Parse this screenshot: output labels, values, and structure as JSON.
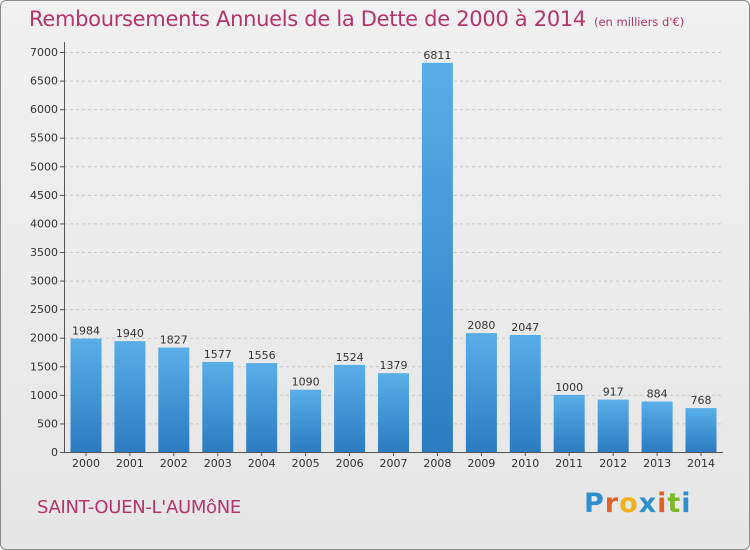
{
  "header": {
    "title": "Remboursements Annuels de la Dette de 2000 à 2014",
    "unit": "(en milliers d'€)"
  },
  "footer": {
    "commune": "SAINT-OUEN-L'AUMôNE",
    "logo_letters": [
      "P",
      "r",
      "o",
      "x",
      "i",
      "t",
      "i"
    ],
    "logo_colors": [
      "#2f8fcd",
      "#e0622a",
      "#f1b21c",
      "#2f8fcd",
      "#e0622a",
      "#7ab929",
      "#2f8fcd"
    ]
  },
  "chart_data": {
    "type": "bar",
    "categories": [
      "2000",
      "2001",
      "2002",
      "2003",
      "2004",
      "2005",
      "2006",
      "2007",
      "2008",
      "2009",
      "2010",
      "2011",
      "2012",
      "2013",
      "2014"
    ],
    "values": [
      1984,
      1940,
      1827,
      1577,
      1556,
      1090,
      1524,
      1379,
      6811,
      2080,
      2047,
      1000,
      917,
      884,
      768
    ],
    "ylim": [
      0,
      7000
    ],
    "yticks": [
      0,
      500,
      1000,
      1500,
      2000,
      2500,
      3000,
      3500,
      4000,
      4500,
      5000,
      5500,
      6000,
      6500,
      7000
    ],
    "data_labels": true,
    "grid": true,
    "bar_color_light": "#5aaee8",
    "bar_color_dark": "#2b7cc0",
    "grid_color": "#c8c8c8",
    "text_color": "#333333"
  }
}
